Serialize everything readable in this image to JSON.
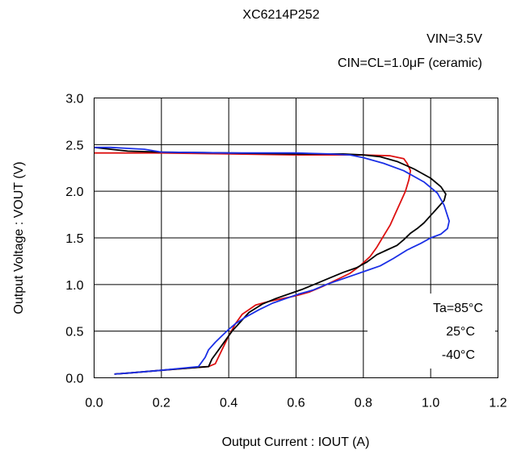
{
  "chart_data": {
    "type": "line",
    "title": "XC6214P252",
    "conditions": [
      "VIN=3.5V",
      "CIN=CL=1.0μF  (ceramic)"
    ],
    "xlabel": "Output Current : IOUT (A)",
    "ylabel": "Output Voltage : VOUT (V)",
    "xlim": [
      0.0,
      1.2
    ],
    "ylim": [
      0.0,
      3.0
    ],
    "xticks": [
      "0.0",
      "0.2",
      "0.4",
      "0.6",
      "0.8",
      "1.0",
      "1.2"
    ],
    "yticks": [
      "0.0",
      "0.5",
      "1.0",
      "1.5",
      "2.0",
      "2.5",
      "3.0"
    ],
    "grid": true,
    "legend_position": "bottom-right",
    "legend_entries": [
      "Ta=85°C",
      "25°C",
      "-40°C"
    ],
    "series": [
      {
        "name": "Ta=85°C",
        "color": "#dd1111",
        "x": [
          0.0,
          0.2,
          0.4,
          0.6,
          0.7,
          0.8,
          0.88,
          0.92,
          0.93,
          0.94,
          0.935,
          0.925,
          0.91,
          0.895,
          0.88,
          0.86,
          0.84,
          0.82,
          0.79,
          0.76,
          0.72,
          0.68,
          0.64,
          0.6,
          0.56,
          0.52,
          0.48,
          0.44,
          0.42,
          0.4,
          0.38,
          0.36,
          0.34,
          0.3,
          0.2,
          0.1,
          0.06
        ],
        "y": [
          2.41,
          2.41,
          2.4,
          2.39,
          2.39,
          2.39,
          2.38,
          2.35,
          2.3,
          2.22,
          2.12,
          2.0,
          1.88,
          1.76,
          1.64,
          1.52,
          1.4,
          1.3,
          1.2,
          1.12,
          1.05,
          0.98,
          0.92,
          0.88,
          0.85,
          0.82,
          0.78,
          0.68,
          0.58,
          0.45,
          0.3,
          0.15,
          0.12,
          0.11,
          0.08,
          0.05,
          0.04
        ]
      },
      {
        "name": "25°C",
        "color": "#000000",
        "x": [
          0.0,
          0.05,
          0.1,
          0.2,
          0.4,
          0.6,
          0.74,
          0.8,
          0.85,
          0.9,
          0.95,
          1.0,
          1.03,
          1.045,
          1.04,
          1.02,
          1.0,
          0.98,
          0.96,
          0.94,
          0.92,
          0.9,
          0.87,
          0.84,
          0.81,
          0.78,
          0.74,
          0.7,
          0.66,
          0.62,
          0.58,
          0.54,
          0.5,
          0.46,
          0.43,
          0.41,
          0.39,
          0.37,
          0.35,
          0.34,
          0.3,
          0.2,
          0.1,
          0.06
        ],
        "y": [
          2.47,
          2.45,
          2.43,
          2.42,
          2.41,
          2.4,
          2.4,
          2.39,
          2.37,
          2.32,
          2.24,
          2.14,
          2.05,
          1.97,
          1.9,
          1.82,
          1.74,
          1.66,
          1.6,
          1.55,
          1.48,
          1.42,
          1.37,
          1.32,
          1.24,
          1.18,
          1.13,
          1.07,
          1.01,
          0.95,
          0.9,
          0.85,
          0.79,
          0.7,
          0.58,
          0.5,
          0.4,
          0.3,
          0.2,
          0.12,
          0.11,
          0.08,
          0.05,
          0.04
        ]
      },
      {
        "name": "-40°C",
        "color": "#1a2fe6",
        "x": [
          0.0,
          0.05,
          0.1,
          0.15,
          0.2,
          0.4,
          0.6,
          0.7,
          0.76,
          0.8,
          0.86,
          0.92,
          0.98,
          1.02,
          1.04,
          1.055,
          1.05,
          1.03,
          1.0,
          0.97,
          0.93,
          0.89,
          0.85,
          0.81,
          0.77,
          0.73,
          0.69,
          0.65,
          0.61,
          0.57,
          0.53,
          0.49,
          0.45,
          0.42,
          0.4,
          0.38,
          0.36,
          0.34,
          0.33,
          0.31,
          0.2,
          0.1,
          0.06
        ],
        "y": [
          2.47,
          2.47,
          2.46,
          2.45,
          2.42,
          2.41,
          2.41,
          2.4,
          2.39,
          2.36,
          2.3,
          2.22,
          2.1,
          1.98,
          1.85,
          1.68,
          1.6,
          1.54,
          1.5,
          1.44,
          1.37,
          1.28,
          1.2,
          1.15,
          1.1,
          1.05,
          1.0,
          0.94,
          0.9,
          0.85,
          0.8,
          0.73,
          0.65,
          0.58,
          0.52,
          0.45,
          0.38,
          0.3,
          0.22,
          0.12,
          0.08,
          0.05,
          0.04
        ]
      }
    ]
  }
}
